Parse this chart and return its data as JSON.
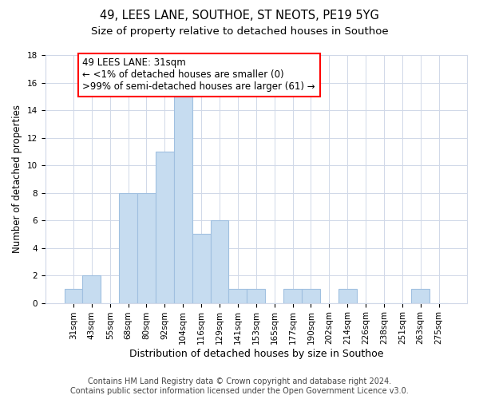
{
  "title": "49, LEES LANE, SOUTHOE, ST NEOTS, PE19 5YG",
  "subtitle": "Size of property relative to detached houses in Southoe",
  "xlabel": "Distribution of detached houses by size in Southoe",
  "ylabel": "Number of detached properties",
  "bar_labels": [
    "31sqm",
    "43sqm",
    "55sqm",
    "68sqm",
    "80sqm",
    "92sqm",
    "104sqm",
    "116sqm",
    "129sqm",
    "141sqm",
    "153sqm",
    "165sqm",
    "177sqm",
    "190sqm",
    "202sqm",
    "214sqm",
    "226sqm",
    "238sqm",
    "251sqm",
    "263sqm",
    "275sqm"
  ],
  "bar_values": [
    1,
    2,
    0,
    8,
    8,
    11,
    15,
    5,
    6,
    1,
    1,
    0,
    1,
    1,
    0,
    1,
    0,
    0,
    0,
    1,
    0
  ],
  "bar_color": "#c6dcf0",
  "bar_edge_color": "#a0c0e0",
  "annotation_box_text": "49 LEES LANE: 31sqm\n← <1% of detached houses are smaller (0)\n>99% of semi-detached houses are larger (61) →",
  "ylim": [
    0,
    18
  ],
  "yticks": [
    0,
    2,
    4,
    6,
    8,
    10,
    12,
    14,
    16,
    18
  ],
  "footer_line1": "Contains HM Land Registry data © Crown copyright and database right 2024.",
  "footer_line2": "Contains public sector information licensed under the Open Government Licence v3.0.",
  "title_fontsize": 10.5,
  "subtitle_fontsize": 9.5,
  "xlabel_fontsize": 9,
  "ylabel_fontsize": 8.5,
  "tick_fontsize": 7.5,
  "annotation_fontsize": 8.5,
  "footer_fontsize": 7,
  "grid_color": "#d0d8e8",
  "background_color": "#ffffff"
}
